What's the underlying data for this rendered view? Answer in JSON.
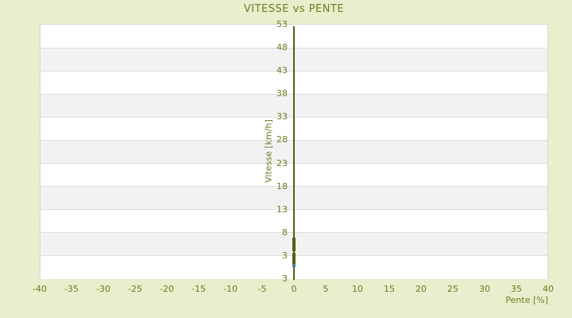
{
  "page": {
    "background_color": "#e9eecd",
    "text_color": "#6f7b22"
  },
  "chart_data": {
    "type": "scatter",
    "title": "VITESSE vs PENTE",
    "xlabel": "Pente [%]",
    "ylabel": "Vitesse [km/h]",
    "xlim": [
      -40,
      40
    ],
    "ylim": [
      -2,
      53
    ],
    "x_ticks": [
      -40,
      -35,
      -30,
      -25,
      -20,
      -15,
      -10,
      -5,
      0,
      5,
      10,
      15,
      20,
      25,
      30,
      35,
      40
    ],
    "y_ticks": [
      53,
      48,
      43,
      38,
      33,
      28,
      23,
      18,
      13,
      8,
      3
    ],
    "y_axis_bottom_extra_label": "3",
    "legend": "none",
    "grid": {
      "band_colors": [
        "#ffffff",
        "#f2f2f2"
      ],
      "line_color": "#dedede",
      "border_color": "#d6d6d6"
    },
    "axis_line": {
      "x": 0,
      "color": "#565f16"
    },
    "series": [
      {
        "color": "#565f16",
        "marker": "square",
        "marker_px": 4,
        "points": [
          [
            0,
            6.4
          ],
          [
            0,
            6.1
          ],
          [
            0,
            5.8
          ],
          [
            0,
            5.5
          ],
          [
            0,
            5.2
          ],
          [
            0,
            4.9
          ],
          [
            0,
            4.6
          ],
          [
            0,
            4.2
          ],
          [
            0,
            3.2
          ],
          [
            0,
            2.9
          ],
          [
            0,
            2.6
          ],
          [
            0,
            2.3
          ],
          [
            0,
            2.0
          ],
          [
            0,
            1.7
          ],
          [
            0,
            1.4
          ]
        ]
      },
      {
        "color": "#4a7e95",
        "marker": "square",
        "marker_px": 4,
        "points": [
          [
            0,
            0.8
          ]
        ]
      }
    ]
  }
}
